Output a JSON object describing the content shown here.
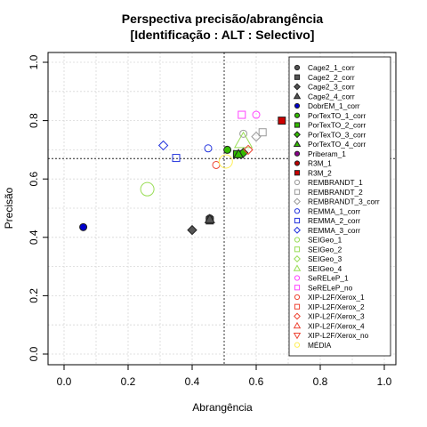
{
  "chart_data": {
    "type": "scatter",
    "title": "Perspectiva precisão/abrangência",
    "subtitle": "[Identificação : ALT : Selectivo]",
    "xlabel": "Abrangência",
    "ylabel": "Precisão",
    "xlim": [
      0,
      1
    ],
    "ylim": [
      0,
      1
    ],
    "xticks": [
      "0.0",
      "0.2",
      "0.4",
      "0.6",
      "0.8",
      "1.0"
    ],
    "yticks": [
      "0.0",
      "0.2",
      "0.4",
      "0.6",
      "0.8",
      "1.0"
    ],
    "grid": true,
    "legend_position": "right",
    "reference_lines": {
      "x": 0.5,
      "y": 0.67
    },
    "series": [
      {
        "name": "Cage2_1_corr",
        "shape": "circle",
        "color": "#555555",
        "filled": true,
        "x": 0.455,
        "y": 0.465
      },
      {
        "name": "Cage2_2_corr",
        "shape": "square",
        "color": "#555555",
        "filled": true,
        "x": 0.455,
        "y": 0.458
      },
      {
        "name": "Cage2_3_corr",
        "shape": "diamond",
        "color": "#555555",
        "filled": true,
        "x": 0.4,
        "y": 0.425
      },
      {
        "name": "Cage2_4_corr",
        "shape": "triangle",
        "color": "#555555",
        "filled": true,
        "x": 0.455,
        "y": 0.462
      },
      {
        "name": "DobrEM_1_corr",
        "shape": "circle",
        "color": "#0000cc",
        "filled": true,
        "x": 0.06,
        "y": 0.435
      },
      {
        "name": "PorTexTO_1_corr",
        "shape": "circle",
        "color": "#33bb00",
        "filled": true,
        "x": 0.51,
        "y": 0.7
      },
      {
        "name": "PorTexTO_2_corr",
        "shape": "square",
        "color": "#33bb00",
        "filled": true,
        "x": 0.54,
        "y": 0.685
      },
      {
        "name": "PorTexTO_3_corr",
        "shape": "diamond",
        "color": "#33bb00",
        "filled": true,
        "x": 0.56,
        "y": 0.69
      },
      {
        "name": "PorTexTO_4_corr",
        "shape": "triangle",
        "color": "#33bb00",
        "filled": true,
        "x": 0.545,
        "y": 0.685
      },
      {
        "name": "Priberam_1",
        "shape": "circle",
        "color": "#880088",
        "filled": true,
        "x": null,
        "y": null
      },
      {
        "name": "R3M_1",
        "shape": "circle",
        "color": "#bb0000",
        "filled": true,
        "x": null,
        "y": null
      },
      {
        "name": "R3M_2",
        "shape": "square",
        "color": "#cc0000",
        "filled": true,
        "x": 0.68,
        "y": 0.8
      },
      {
        "name": "REMBRANDT_1",
        "shape": "circle",
        "color": "#999999",
        "filled": false,
        "x": 0.56,
        "y": 0.755
      },
      {
        "name": "REMBRANDT_2",
        "shape": "square",
        "color": "#999999",
        "filled": false,
        "x": 0.62,
        "y": 0.76
      },
      {
        "name": "REMBRANDT_3_corr",
        "shape": "diamond",
        "color": "#999999",
        "filled": false,
        "x": 0.6,
        "y": 0.745
      },
      {
        "name": "REMMA_1_corr",
        "shape": "circle",
        "color": "#2233dd",
        "filled": false,
        "x": 0.45,
        "y": 0.705
      },
      {
        "name": "REMMA_2_corr",
        "shape": "square",
        "color": "#2233dd",
        "filled": false,
        "x": 0.35,
        "y": 0.672
      },
      {
        "name": "REMMA_3_corr",
        "shape": "diamond",
        "color": "#2233dd",
        "filled": false,
        "x": 0.31,
        "y": 0.715
      },
      {
        "name": "SEIGeo_1",
        "shape": "circle",
        "color": "#99dd55",
        "filled": false,
        "x": 0.26,
        "y": 0.565,
        "size": "large"
      },
      {
        "name": "SEIGeo_2",
        "shape": "square",
        "color": "#99dd55",
        "filled": false,
        "x": null,
        "y": null
      },
      {
        "name": "SEIGeo_3",
        "shape": "diamond",
        "color": "#99dd55",
        "filled": false,
        "x": null,
        "y": null
      },
      {
        "name": "SEIGeo_4",
        "shape": "triangle",
        "color": "#99dd55",
        "filled": false,
        "x": 0.56,
        "y": 0.73,
        "size": "large"
      },
      {
        "name": "SeRELeP_1",
        "shape": "circle",
        "color": "#ff44ff",
        "filled": false,
        "x": 0.6,
        "y": 0.82
      },
      {
        "name": "SeRELeP_no",
        "shape": "square",
        "color": "#ff44ff",
        "filled": false,
        "x": 0.555,
        "y": 0.82
      },
      {
        "name": "XIP-L2F/Xerox_1",
        "shape": "circle",
        "color": "#ee4433",
        "filled": false,
        "x": 0.475,
        "y": 0.648
      },
      {
        "name": "XIP-L2F/Xerox_2",
        "shape": "square",
        "color": "#ee4433",
        "filled": false,
        "x": null,
        "y": null
      },
      {
        "name": "XIP-L2F/Xerox_3",
        "shape": "diamond",
        "color": "#ee4433",
        "filled": false,
        "x": 0.575,
        "y": 0.7
      },
      {
        "name": "XIP-L2F/Xerox_4",
        "shape": "triangle",
        "color": "#ee4433",
        "filled": false,
        "x": null,
        "y": null
      },
      {
        "name": "XIP-L2F/Xerox_no",
        "shape": "triangle-down",
        "color": "#ee4433",
        "filled": false,
        "x": null,
        "y": null
      },
      {
        "name": "MÉDIA",
        "shape": "circle",
        "color": "#ffee55",
        "filled": false,
        "x": 0.505,
        "y": 0.66,
        "size": "large"
      }
    ]
  }
}
